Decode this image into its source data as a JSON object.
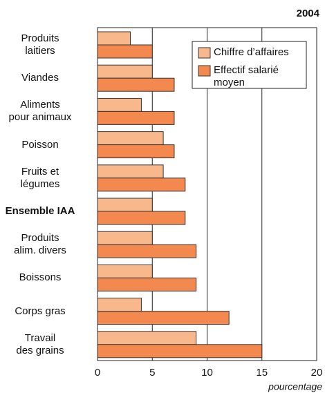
{
  "chart_data": {
    "type": "bar",
    "orientation": "horizontal",
    "title": "2004",
    "xlabel": "pourcentage",
    "categories": [
      "Produits\nlaitiers",
      "Viandes",
      "Aliments\npour animaux",
      "Poisson",
      "Fruits et\nlégumes",
      "Ensemble IAA",
      "Produits\nalim. divers",
      "Boissons",
      "Corps gras",
      "Travail\ndes grains"
    ],
    "series": [
      {
        "name": "Chiffre d’affaires",
        "color": "#f9b88c",
        "values": [
          3,
          5,
          4,
          6,
          6,
          5,
          5,
          5,
          4,
          9
        ]
      },
      {
        "name": "Effectif salarié\nmoyen",
        "color": "#f4894f",
        "values": [
          5,
          7,
          7,
          7,
          8,
          8,
          9,
          9,
          12,
          15
        ]
      }
    ],
    "xlim": [
      0,
      20
    ],
    "xticks": [
      0,
      5,
      10,
      15,
      20
    ],
    "grid": true,
    "legend": "top-right"
  }
}
